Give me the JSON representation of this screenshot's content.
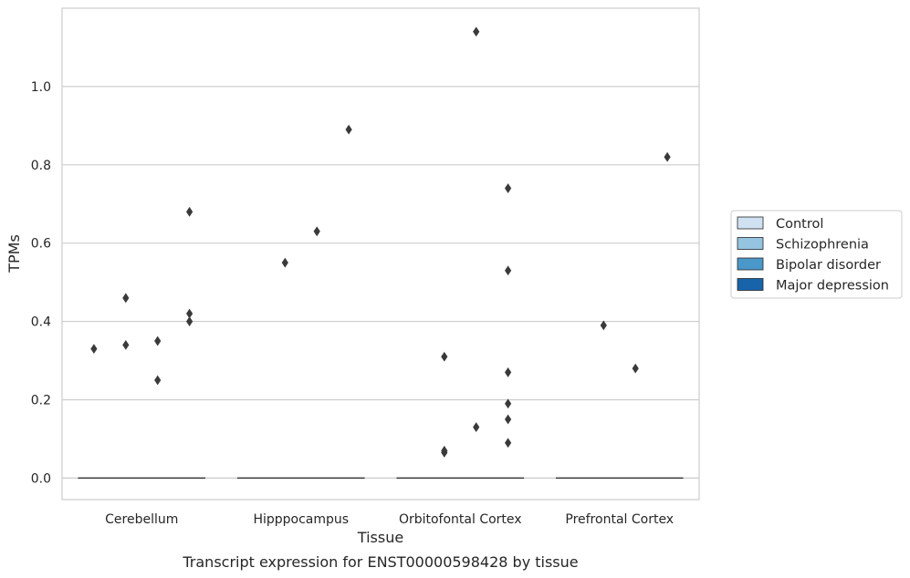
{
  "chart_data": {
    "type": "box",
    "title": "",
    "caption": "Transcript expression for ENST00000598428 by tissue",
    "xlabel": "Tissue",
    "ylabel": "TPMs",
    "categories": [
      "Cerebellum",
      "Hipppocampus",
      "Orbitofontal Cortex",
      "Prefrontal Cortex"
    ],
    "ylim": [
      -0.055,
      1.2
    ],
    "yticks": [
      "0.0",
      "0.2",
      "0.4",
      "0.6",
      "0.8",
      "1.0"
    ],
    "grid": "horizontal",
    "legend_position": "right",
    "series": [
      {
        "name": "Control",
        "color": "#d0e1f2"
      },
      {
        "name": "Schizophrenia",
        "color": "#94c4df"
      },
      {
        "name": "Bipolar disorder",
        "color": "#4a98c9"
      },
      {
        "name": "Major depression",
        "color": "#1764ab"
      }
    ],
    "boxes": [
      {
        "category": "Cerebellum",
        "median": 0.0,
        "q1": 0.0,
        "q3": 0.0
      },
      {
        "category": "Hipppocampus",
        "median": 0.0,
        "q1": 0.0,
        "q3": 0.0
      },
      {
        "category": "Orbitofontal Cortex",
        "median": 0.0,
        "q1": 0.0,
        "q3": 0.0
      },
      {
        "category": "Prefrontal Cortex",
        "median": 0.0,
        "q1": 0.0,
        "q3": 0.0
      }
    ],
    "outliers": [
      {
        "category": "Cerebellum",
        "series": "Control",
        "values": [
          0.33
        ]
      },
      {
        "category": "Cerebellum",
        "series": "Schizophrenia",
        "values": [
          0.46,
          0.34
        ]
      },
      {
        "category": "Cerebellum",
        "series": "Bipolar disorder",
        "values": [
          0.35,
          0.25
        ]
      },
      {
        "category": "Cerebellum",
        "series": "Major depression",
        "values": [
          0.68,
          0.42,
          0.4
        ]
      },
      {
        "category": "Hipppocampus",
        "series": "Schizophrenia",
        "values": [
          0.55
        ]
      },
      {
        "category": "Hipppocampus",
        "series": "Bipolar disorder",
        "values": [
          0.63
        ]
      },
      {
        "category": "Hipppocampus",
        "series": "Major depression",
        "values": [
          0.89
        ]
      },
      {
        "category": "Orbitofontal Cortex",
        "series": "Schizophrenia",
        "values": [
          0.31,
          0.07,
          0.065
        ]
      },
      {
        "category": "Orbitofontal Cortex",
        "series": "Bipolar disorder",
        "values": [
          1.14,
          0.13
        ]
      },
      {
        "category": "Orbitofontal Cortex",
        "series": "Major depression",
        "values": [
          0.53,
          0.27,
          0.09
        ]
      },
      {
        "category": "Orbitofontal Cortex",
        "series": "Major depression",
        "values": [
          0.74,
          0.19,
          0.15
        ]
      },
      {
        "category": "Prefrontal Cortex",
        "series": "Schizophrenia",
        "values": [
          0.39
        ]
      },
      {
        "category": "Prefrontal Cortex",
        "series": "Bipolar disorder",
        "values": [
          0.28
        ]
      },
      {
        "category": "Prefrontal Cortex",
        "series": "Major depression",
        "values": [
          0.82
        ]
      }
    ]
  },
  "colors": {
    "grid": "#cccccc",
    "axes_border": "#cccccc",
    "marker": "#3a3a3a",
    "median_line": "#3a3a3a"
  }
}
